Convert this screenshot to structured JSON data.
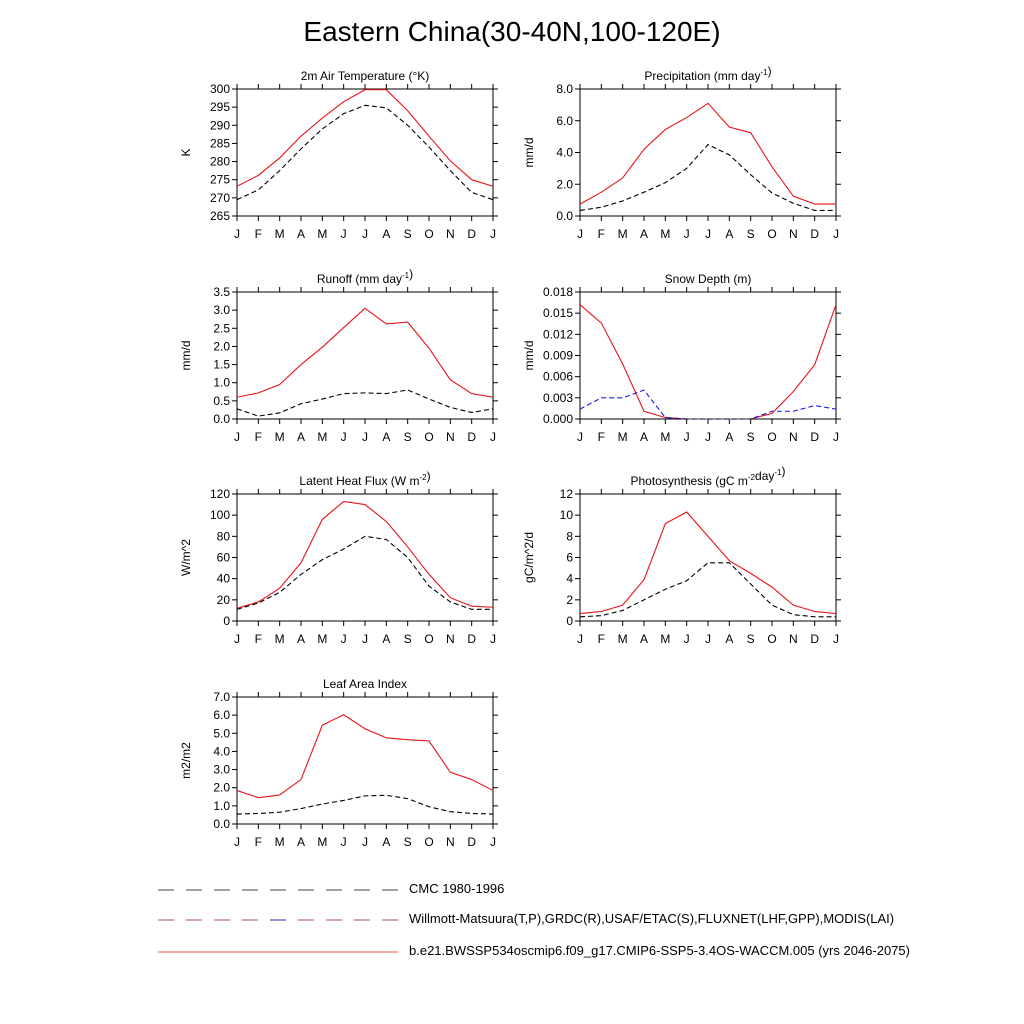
{
  "page": {
    "title": "Eastern China(30-40N,100-120E)"
  },
  "colors": {
    "model": "#e8141b",
    "obs_black": "#000000",
    "obs_blue": "#1a1aee"
  },
  "months": [
    "J",
    "F",
    "M",
    "A",
    "M",
    "J",
    "J",
    "A",
    "S",
    "O",
    "N",
    "D",
    "J"
  ],
  "legend": [
    {
      "label": "CMC 1980-1996",
      "style": "dashed",
      "color": "#000000"
    },
    {
      "label": "Willmott-Matsuura(T,P),GRDC(R),USAF/ETAC(S),FLUXNET(LHF,GPP),MODIS(LAI)",
      "style": "dashed",
      "color": "#000000"
    },
    {
      "label": "b.e21.BWSSP534oscmip6.f09_g17.CMIP6-SSP5-3.4OS-WACCM.005 (yrs 2046-2075)",
      "style": "solid",
      "color": "#e8141b"
    }
  ],
  "chart_data": [
    {
      "type": "line",
      "title": "2m Air Temperature (°K)",
      "ylabel": "K",
      "ylim": [
        265,
        300
      ],
      "yticks": [
        "265",
        "270",
        "275",
        "280",
        "285",
        "290",
        "295",
        "300"
      ],
      "x": [
        "J",
        "F",
        "M",
        "A",
        "M",
        "J",
        "J",
        "A",
        "S",
        "O",
        "N",
        "D",
        "J"
      ],
      "series": [
        {
          "style": "solid",
          "color": "#e8141b",
          "values": [
            273.2,
            276.2,
            281.0,
            287.0,
            292.0,
            296.5,
            299.8,
            299.8,
            294.0,
            287.0,
            280.2,
            275.0,
            273.2
          ]
        },
        {
          "style": "dashed",
          "color": "#000000",
          "values": [
            269.5,
            272.2,
            277.5,
            283.5,
            289.0,
            293.2,
            295.5,
            294.8,
            290.0,
            284.0,
            277.5,
            271.5,
            269.5
          ]
        }
      ]
    },
    {
      "type": "line",
      "title": "Precipitation (mm day-1)",
      "ylabel": "mm/d",
      "ylim": [
        0,
        8
      ],
      "yticks": [
        "0.0",
        "2.0",
        "4.0",
        "6.0",
        "8.0"
      ],
      "x": [
        "J",
        "F",
        "M",
        "A",
        "M",
        "J",
        "J",
        "A",
        "S",
        "O",
        "N",
        "D",
        "J"
      ],
      "series": [
        {
          "style": "solid",
          "color": "#e8141b",
          "values": [
            0.75,
            1.5,
            2.4,
            4.2,
            5.45,
            6.2,
            7.1,
            5.6,
            5.25,
            3.1,
            1.25,
            0.75,
            0.75
          ]
        },
        {
          "style": "dashed",
          "color": "#000000",
          "values": [
            0.35,
            0.55,
            0.95,
            1.5,
            2.1,
            3.0,
            4.5,
            3.85,
            2.6,
            1.45,
            0.8,
            0.35,
            0.35
          ]
        }
      ]
    },
    {
      "type": "line",
      "title": "Runoff (mm day-1)",
      "ylabel": "mm/d",
      "ylim": [
        0,
        3.5
      ],
      "yticks": [
        "0.0",
        "0.5",
        "1.0",
        "1.5",
        "2.0",
        "2.5",
        "3.0",
        "3.5"
      ],
      "x": [
        "J",
        "F",
        "M",
        "A",
        "M",
        "J",
        "J",
        "A",
        "S",
        "O",
        "N",
        "D",
        "J"
      ],
      "series": [
        {
          "style": "solid",
          "color": "#e8141b",
          "values": [
            0.6,
            0.72,
            0.95,
            1.5,
            1.98,
            2.52,
            3.05,
            2.62,
            2.67,
            1.95,
            1.08,
            0.7,
            0.6
          ]
        },
        {
          "style": "dashed",
          "color": "#000000",
          "values": [
            0.28,
            0.08,
            0.17,
            0.42,
            0.55,
            0.7,
            0.72,
            0.7,
            0.8,
            0.55,
            0.32,
            0.18,
            0.28
          ]
        }
      ]
    },
    {
      "type": "line",
      "title": "Snow Depth (m)",
      "ylabel": "mm/d",
      "ylim": [
        0,
        0.018
      ],
      "yticks": [
        "0.000",
        "0.003",
        "0.006",
        "0.009",
        "0.012",
        "0.015",
        "0.018"
      ],
      "x": [
        "J",
        "F",
        "M",
        "A",
        "M",
        "J",
        "J",
        "A",
        "S",
        "O",
        "N",
        "D",
        "J"
      ],
      "series": [
        {
          "style": "solid",
          "color": "#e8141b",
          "values": [
            0.0162,
            0.0136,
            0.0078,
            0.0011,
            0.0002,
            0.0,
            0.0,
            0.0,
            0.0,
            0.0008,
            0.0039,
            0.0077,
            0.0162
          ]
        },
        {
          "style": "dashed",
          "color": "#1a1aee",
          "values": [
            0.0014,
            0.003,
            0.003,
            0.0041,
            0.0002,
            0.0,
            0.0,
            0.0,
            0.0,
            0.0011,
            0.0011,
            0.0019,
            0.0014
          ]
        },
        {
          "style": "dashed",
          "color": "#000000",
          "values": [
            0.0,
            0.0,
            0.0,
            0.0,
            0.0,
            0.0,
            0.0,
            0.0,
            0.0,
            0.0,
            0.0,
            0.0,
            0.0
          ]
        }
      ]
    },
    {
      "type": "line",
      "title": "Latent Heat Flux (W m-2)",
      "ylabel": "W/m^2",
      "ylim": [
        0,
        120
      ],
      "yticks": [
        "0",
        "20",
        "40",
        "60",
        "80",
        "100",
        "120"
      ],
      "x": [
        "J",
        "F",
        "M",
        "A",
        "M",
        "J",
        "J",
        "A",
        "S",
        "O",
        "N",
        "D",
        "J"
      ],
      "series": [
        {
          "style": "solid",
          "color": "#e8141b",
          "values": [
            12,
            18,
            31,
            55,
            96,
            113,
            110,
            94,
            70,
            44,
            22,
            14,
            13
          ]
        },
        {
          "style": "dashed",
          "color": "#000000",
          "values": [
            11,
            17,
            27,
            44,
            58,
            68,
            80,
            77,
            60,
            33,
            18,
            11,
            11
          ]
        }
      ]
    },
    {
      "type": "line",
      "title": "Photosynthesis (gC m-2day-1)",
      "ylabel": "gC/m^2/d",
      "ylim": [
        0,
        12
      ],
      "yticks": [
        "0",
        "2",
        "4",
        "6",
        "8",
        "10",
        "12"
      ],
      "x": [
        "J",
        "F",
        "M",
        "A",
        "M",
        "J",
        "J",
        "A",
        "S",
        "O",
        "N",
        "D",
        "J"
      ],
      "series": [
        {
          "style": "solid",
          "color": "#e8141b",
          "values": [
            0.7,
            0.9,
            1.5,
            3.9,
            9.2,
            10.3,
            8.0,
            5.7,
            4.5,
            3.2,
            1.5,
            0.9,
            0.7
          ]
        },
        {
          "style": "dashed",
          "color": "#000000",
          "values": [
            0.4,
            0.5,
            1.0,
            2.0,
            3.0,
            3.8,
            5.5,
            5.5,
            3.5,
            1.5,
            0.6,
            0.4,
            0.4
          ]
        }
      ]
    },
    {
      "type": "line",
      "title": "Leaf Area Index",
      "ylabel": "m2/m2",
      "ylim": [
        0,
        7
      ],
      "yticks": [
        "0.0",
        "1.0",
        "2.0",
        "3.0",
        "4.0",
        "5.0",
        "6.0",
        "7.0"
      ],
      "x": [
        "J",
        "F",
        "M",
        "A",
        "M",
        "J",
        "J",
        "A",
        "S",
        "O",
        "N",
        "D",
        "J"
      ],
      "series": [
        {
          "style": "solid",
          "color": "#e8141b",
          "values": [
            1.85,
            1.45,
            1.6,
            2.45,
            5.45,
            6.02,
            5.25,
            4.75,
            4.65,
            4.58,
            2.85,
            2.45,
            1.85
          ]
        },
        {
          "style": "dashed",
          "color": "#000000",
          "values": [
            0.55,
            0.58,
            0.65,
            0.85,
            1.1,
            1.3,
            1.55,
            1.58,
            1.4,
            0.95,
            0.68,
            0.58,
            0.55
          ]
        }
      ]
    }
  ]
}
